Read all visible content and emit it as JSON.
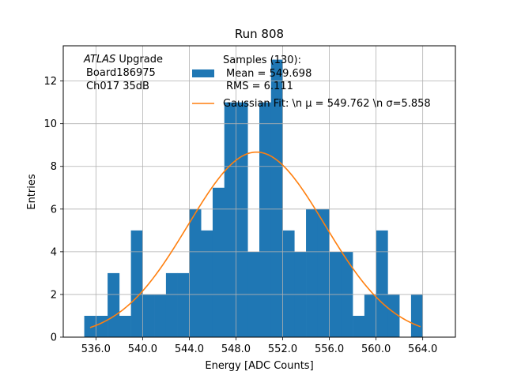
{
  "chart_data": {
    "type": "bar",
    "title": "Run 808",
    "xlabel": "Energy [ADC Counts]",
    "ylabel": "Entries",
    "xlim": [
      533.2,
      566.8
    ],
    "ylim": [
      0,
      13.65
    ],
    "grid": true,
    "xticks": [
      536,
      540,
      544,
      548,
      552,
      556,
      560,
      564
    ],
    "xtick_labels": [
      "536.0",
      "540.0",
      "544.0",
      "548.0",
      "552.0",
      "556.0",
      "560.0",
      "564.0"
    ],
    "yticks": [
      0,
      2,
      4,
      6,
      8,
      10,
      12
    ],
    "ytick_labels": [
      "0",
      "2",
      "4",
      "6",
      "8",
      "10",
      "12"
    ],
    "histogram": {
      "bin_start": 535.0,
      "bin_width": 1.0,
      "counts": [
        1,
        1,
        3,
        1,
        5,
        2,
        2,
        3,
        3,
        6,
        5,
        7,
        11,
        11,
        4,
        11,
        13,
        5,
        4,
        6,
        6,
        4,
        4,
        1,
        2,
        5,
        2,
        0,
        2
      ],
      "color": "#1f77b4",
      "legend_title": "Samples (130):",
      "legend_mean": "Mean = 549.698",
      "legend_rms": "RMS = 6.111"
    },
    "fit": {
      "type": "gaussian",
      "amplitude": 8.67,
      "mu": 549.762,
      "sigma": 5.858,
      "x_range": [
        535.5,
        563.8
      ],
      "color": "#ff7f0e",
      "legend_text": "Gaussian Fit: \\n μ = 549.762 \\n σ=5.858"
    },
    "annotation": {
      "line1_italic": "ATLAS",
      "line1_rest": " Upgrade",
      "line2": "Board186975",
      "line3": "Ch017 35dB"
    }
  }
}
